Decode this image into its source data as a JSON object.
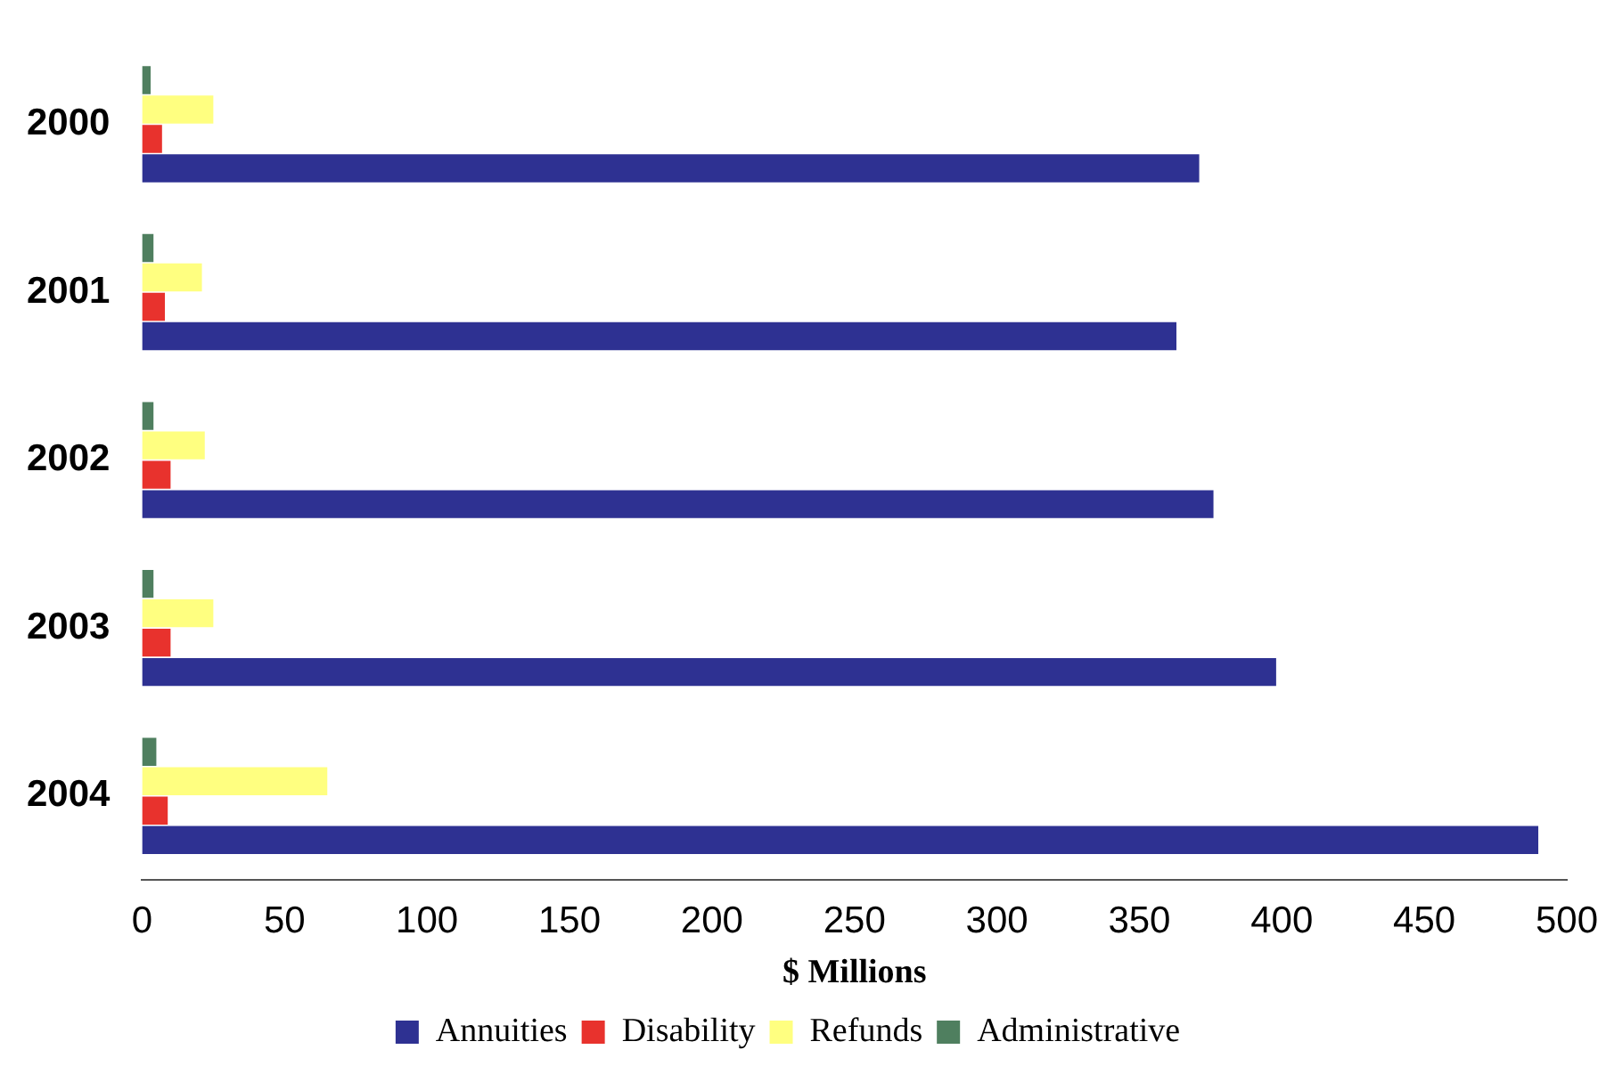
{
  "chart_data": {
    "type": "bar",
    "orientation": "horizontal",
    "xlabel": "$ Millions",
    "categories": [
      "2000",
      "2001",
      "2002",
      "2003",
      "2004"
    ],
    "series": [
      {
        "name": "Annuities",
        "color": "#2e3192",
        "values": [
          371,
          363,
          376,
          398,
          490
        ]
      },
      {
        "name": "Disability",
        "color": "#e8322d",
        "values": [
          7,
          8,
          10,
          10,
          9
        ]
      },
      {
        "name": "Refunds",
        "color": "#ffff80",
        "values": [
          25,
          21,
          22,
          25,
          65
        ]
      },
      {
        "name": "Administrative",
        "color": "#4f7f5f",
        "values": [
          3,
          4,
          4,
          4,
          5
        ]
      }
    ],
    "xlim": [
      0,
      500
    ],
    "xticks": [
      0,
      50,
      100,
      150,
      200,
      250,
      300,
      350,
      400,
      450,
      500
    ],
    "grid": false,
    "legend": "bottom"
  }
}
